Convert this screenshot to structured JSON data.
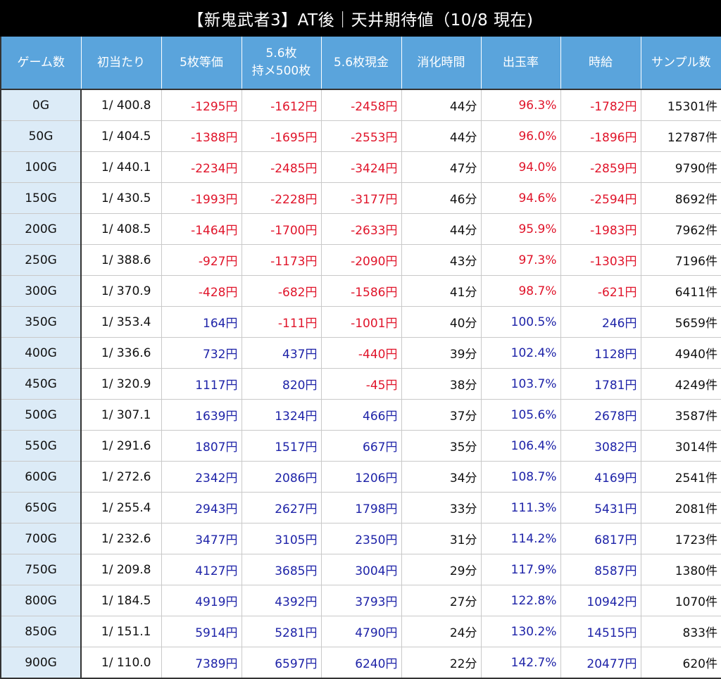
{
  "title": "【新鬼武者3】AT後｜天井期待値（10/8 現在)",
  "headers": [
    "ゲーム数",
    "初当たり",
    "5枚等価",
    "5.6枚\n持メ500枚",
    "5.6枚現金",
    "消化時間",
    "出玉率",
    "時給",
    "サンプル数"
  ],
  "colors": {
    "header_bg": "#5aa4dc",
    "first_col_bg": "#dcebf7",
    "negative": "#e0142a",
    "positive": "#1e23a8"
  },
  "rows": [
    [
      "0G",
      "1/ 400.8",
      "-1295円",
      "-1612円",
      "-2458円",
      "44分",
      "96.3%",
      "-1782円",
      "15301件"
    ],
    [
      "50G",
      "1/ 404.5",
      "-1388円",
      "-1695円",
      "-2553円",
      "44分",
      "96.0%",
      "-1896円",
      "12787件"
    ],
    [
      "100G",
      "1/ 440.1",
      "-2234円",
      "-2485円",
      "-3424円",
      "47分",
      "94.0%",
      "-2859円",
      "9790件"
    ],
    [
      "150G",
      "1/ 430.5",
      "-1993円",
      "-2228円",
      "-3177円",
      "46分",
      "94.6%",
      "-2594円",
      "8692件"
    ],
    [
      "200G",
      "1/ 408.5",
      "-1464円",
      "-1700円",
      "-2633円",
      "44分",
      "95.9%",
      "-1983円",
      "7962件"
    ],
    [
      "250G",
      "1/ 388.6",
      "-927円",
      "-1173円",
      "-2090円",
      "43分",
      "97.3%",
      "-1303円",
      "7196件"
    ],
    [
      "300G",
      "1/ 370.9",
      "-428円",
      "-682円",
      "-1586円",
      "41分",
      "98.7%",
      "-621円",
      "6411件"
    ],
    [
      "350G",
      "1/ 353.4",
      "164円",
      "-111円",
      "-1001円",
      "40分",
      "100.5%",
      "246円",
      "5659件"
    ],
    [
      "400G",
      "1/ 336.6",
      "732円",
      "437円",
      "-440円",
      "39分",
      "102.4%",
      "1128円",
      "4940件"
    ],
    [
      "450G",
      "1/ 320.9",
      "1117円",
      "820円",
      "-45円",
      "38分",
      "103.7%",
      "1781円",
      "4249件"
    ],
    [
      "500G",
      "1/ 307.1",
      "1639円",
      "1324円",
      "466円",
      "37分",
      "105.6%",
      "2678円",
      "3587件"
    ],
    [
      "550G",
      "1/ 291.6",
      "1807円",
      "1517円",
      "667円",
      "35分",
      "106.4%",
      "3082円",
      "3014件"
    ],
    [
      "600G",
      "1/ 272.6",
      "2342円",
      "2086円",
      "1206円",
      "34分",
      "108.7%",
      "4169円",
      "2541件"
    ],
    [
      "650G",
      "1/ 255.4",
      "2943円",
      "2627円",
      "1798円",
      "33分",
      "111.3%",
      "5431円",
      "2081件"
    ],
    [
      "700G",
      "1/ 232.6",
      "3477円",
      "3105円",
      "2350円",
      "31分",
      "114.2%",
      "6817円",
      "1723件"
    ],
    [
      "750G",
      "1/ 209.8",
      "4127円",
      "3685円",
      "3004円",
      "29分",
      "117.9%",
      "8587円",
      "1380件"
    ],
    [
      "800G",
      "1/ 184.5",
      "4919円",
      "4392円",
      "3793円",
      "27分",
      "122.8%",
      "10942円",
      "1070件"
    ],
    [
      "850G",
      "1/ 151.1",
      "5914円",
      "5281円",
      "4790円",
      "24分",
      "130.2%",
      "14515円",
      "833件"
    ],
    [
      "900G",
      "1/ 110.0",
      "7389円",
      "6597円",
      "6240円",
      "22分",
      "142.7%",
      "20477円",
      "620件"
    ]
  ]
}
